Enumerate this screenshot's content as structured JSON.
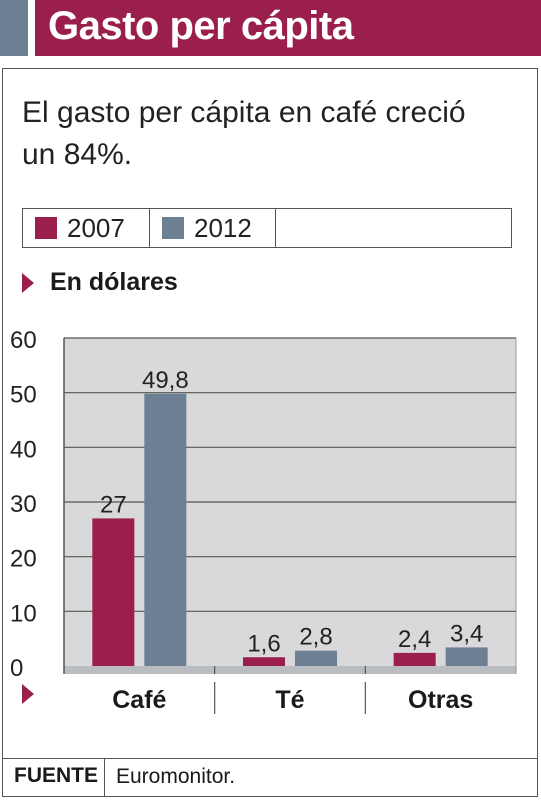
{
  "header": {
    "title": "Gasto per cápita"
  },
  "subtitle": "El gasto per cápita en café creció un 84%.",
  "unit_label": "En dólares",
  "footer": {
    "source_label": "FUENTE",
    "source_value": "Euromonitor."
  },
  "colors": {
    "accent": "#9b1f4c",
    "series_2007": "#9b1f4c",
    "series_2012": "#6d7f92",
    "plot_bg": "#d9d9db"
  },
  "chart_data": {
    "type": "bar",
    "title": "Gasto per cápita",
    "xlabel": "",
    "ylabel": "",
    "categories": [
      "Café",
      "Té",
      "Otras"
    ],
    "series": [
      {
        "name": "2007",
        "values": [
          27,
          1.6,
          2.4
        ],
        "labels": [
          "27",
          "1,6",
          "2,4"
        ]
      },
      {
        "name": "2012",
        "values": [
          49.8,
          2.8,
          3.4
        ],
        "labels": [
          "49,8",
          "2,8",
          "3,4"
        ]
      }
    ],
    "ylim": [
      0,
      60
    ],
    "yticks": [
      0,
      10,
      20,
      30,
      40,
      50,
      60
    ],
    "grid": true,
    "legend": "top"
  }
}
